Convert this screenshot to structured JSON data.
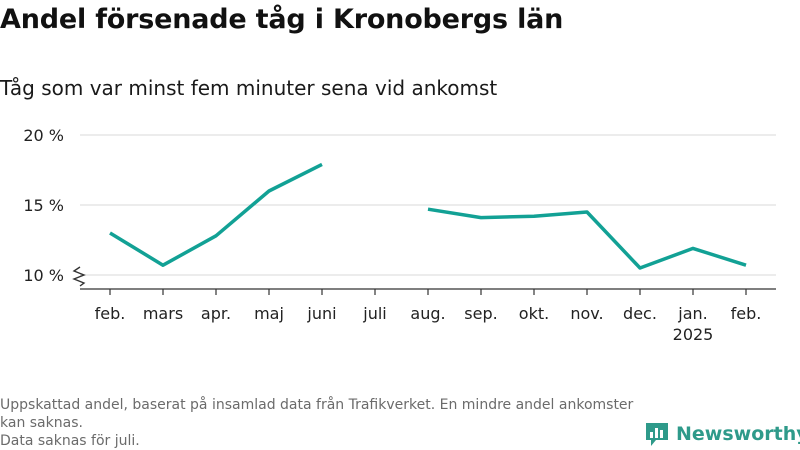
{
  "title": "Andel försenade tåg i Kronobergs län",
  "subtitle": "Tåg som var minst fem minuter sena vid ankomst",
  "footnote": [
    "Uppskattad andel, baserat på insamlad data från Trafikverket. En mindre andel ankomster kan saknas.",
    "Data saknas för juli."
  ],
  "brand": {
    "name": "Newsworthy",
    "color": "#2e9a8a",
    "icon": "bar-chart-logo-icon"
  },
  "chart_data": {
    "type": "line",
    "title": "Andel försenade tåg i Kronobergs län",
    "subtitle": "Tåg som var minst fem minuter sena vid ankomst",
    "xlabel": "",
    "ylabel": "",
    "categories": [
      "feb.",
      "mars",
      "apr.",
      "maj",
      "juni",
      "juli",
      "aug.",
      "sep.",
      "okt.",
      "nov.",
      "dec.",
      "jan.",
      "feb."
    ],
    "year_labels": {
      "11": "2025"
    },
    "y_ticks": [
      10,
      15,
      20
    ],
    "y_tick_labels": [
      "10 %",
      "15 %",
      "20 %"
    ],
    "ylim": [
      10,
      20
    ],
    "axis_break": true,
    "grid": true,
    "series": [
      {
        "color": "#12a195",
        "values": [
          13.0,
          10.7,
          12.8,
          16.0,
          17.9,
          null,
          14.7,
          14.1,
          14.2,
          14.5,
          10.5,
          11.9,
          10.7
        ]
      }
    ]
  }
}
